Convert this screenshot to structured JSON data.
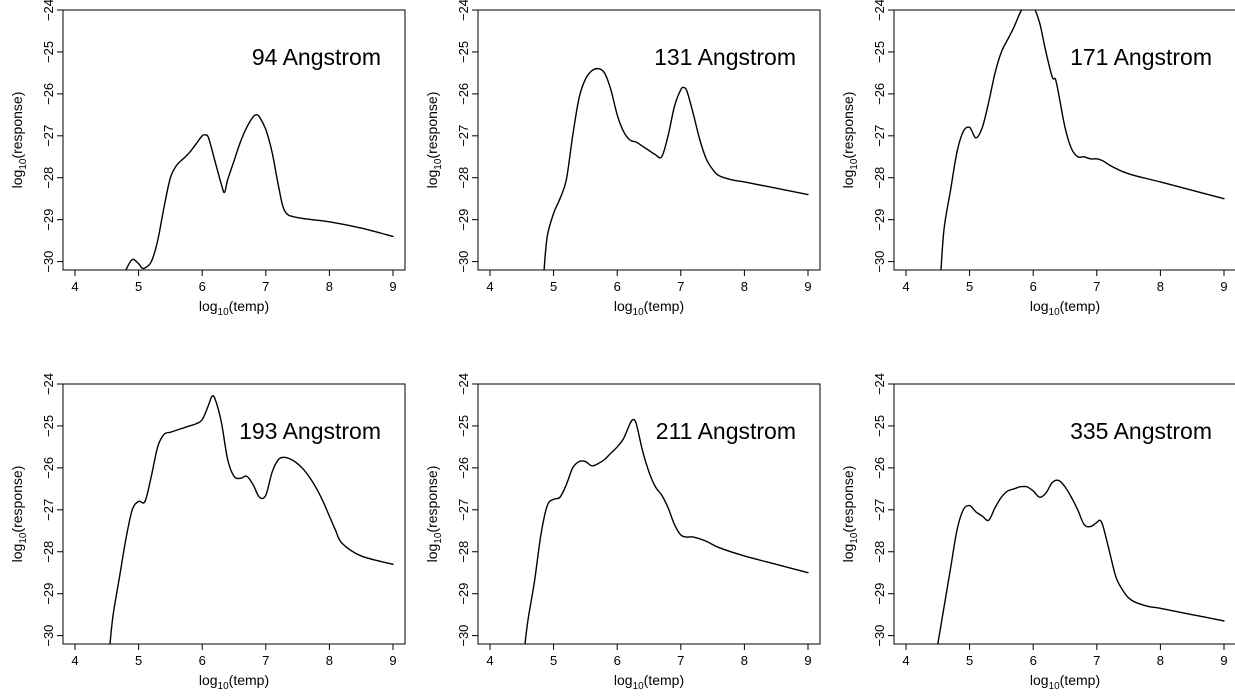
{
  "chart_data": [
    {
      "type": "line",
      "title": "94 Angstrom",
      "xlabel": {
        "base": "log",
        "sub": "10",
        "tail": "(temp)"
      },
      "ylabel": {
        "base": "log",
        "sub": "10",
        "tail": "(response)"
      },
      "xlim": [
        4,
        9
      ],
      "ylim": [
        -30.2,
        -24
      ],
      "xticks": [
        4,
        5,
        6,
        7,
        8,
        9
      ],
      "yticks": [
        -30,
        -29,
        -28,
        -27,
        -26,
        -25,
        -24
      ],
      "grid": false,
      "x": [
        4.8,
        4.9,
        5.0,
        5.05,
        5.1,
        5.2,
        5.3,
        5.4,
        5.5,
        5.6,
        5.7,
        5.8,
        5.9,
        6.0,
        6.05,
        6.1,
        6.2,
        6.3,
        6.35,
        6.4,
        6.5,
        6.6,
        6.7,
        6.8,
        6.85,
        6.9,
        7.0,
        7.1,
        7.2,
        7.3,
        7.5,
        8.0,
        8.5,
        9.0
      ],
      "y": [
        -30.2,
        -29.95,
        -30.05,
        -30.15,
        -30.15,
        -30.0,
        -29.5,
        -28.7,
        -28.0,
        -27.7,
        -27.55,
        -27.4,
        -27.2,
        -27.0,
        -26.98,
        -27.05,
        -27.6,
        -28.15,
        -28.35,
        -28.05,
        -27.6,
        -27.15,
        -26.8,
        -26.55,
        -26.5,
        -26.55,
        -26.85,
        -27.4,
        -28.2,
        -28.8,
        -28.95,
        -29.05,
        -29.2,
        -29.4
      ]
    },
    {
      "type": "line",
      "title": "131 Angstrom",
      "xlabel": {
        "base": "log",
        "sub": "10",
        "tail": "(temp)"
      },
      "ylabel": {
        "base": "log",
        "sub": "10",
        "tail": "(response)"
      },
      "xlim": [
        4,
        9
      ],
      "ylim": [
        -30.2,
        -24
      ],
      "xticks": [
        4,
        5,
        6,
        7,
        8,
        9
      ],
      "yticks": [
        -30,
        -29,
        -28,
        -27,
        -26,
        -25,
        -24
      ],
      "grid": false,
      "x": [
        4.85,
        4.9,
        5.0,
        5.1,
        5.2,
        5.3,
        5.4,
        5.5,
        5.6,
        5.7,
        5.8,
        5.9,
        6.0,
        6.1,
        6.2,
        6.3,
        6.4,
        6.5,
        6.6,
        6.7,
        6.8,
        6.9,
        7.0,
        7.05,
        7.1,
        7.2,
        7.3,
        7.4,
        7.5,
        7.6,
        7.8,
        8.0,
        8.5,
        9.0
      ],
      "y": [
        -30.2,
        -29.4,
        -28.85,
        -28.5,
        -28.05,
        -27.0,
        -26.1,
        -25.65,
        -25.45,
        -25.4,
        -25.5,
        -25.9,
        -26.5,
        -26.9,
        -27.1,
        -27.15,
        -27.25,
        -27.35,
        -27.45,
        -27.5,
        -27.0,
        -26.3,
        -25.9,
        -25.85,
        -25.95,
        -26.5,
        -27.1,
        -27.55,
        -27.8,
        -27.95,
        -28.05,
        -28.1,
        -28.25,
        -28.4
      ]
    },
    {
      "type": "line",
      "title": "171 Angstrom",
      "xlabel": {
        "base": "log",
        "sub": "10",
        "tail": "(temp)"
      },
      "ylabel": {
        "base": "log",
        "sub": "10",
        "tail": "(response)"
      },
      "xlim": [
        4,
        9
      ],
      "ylim": [
        -30.2,
        -24
      ],
      "xticks": [
        4,
        5,
        6,
        7,
        8,
        9
      ],
      "yticks": [
        -30,
        -29,
        -28,
        -27,
        -26,
        -25,
        -24
      ],
      "grid": false,
      "x": [
        4.55,
        4.6,
        4.7,
        4.8,
        4.9,
        5.0,
        5.1,
        5.2,
        5.3,
        5.4,
        5.5,
        5.6,
        5.7,
        5.8,
        5.9,
        5.95,
        6.0,
        6.1,
        6.2,
        6.3,
        6.35,
        6.4,
        6.5,
        6.6,
        6.7,
        6.8,
        6.9,
        7.0,
        7.1,
        7.2,
        7.4,
        7.6,
        8.0,
        8.5,
        9.0
      ],
      "y": [
        -30.2,
        -29.2,
        -28.3,
        -27.4,
        -26.9,
        -26.8,
        -27.05,
        -26.8,
        -26.2,
        -25.5,
        -25.0,
        -24.7,
        -24.4,
        -24.05,
        -23.85,
        -23.85,
        -23.9,
        -24.3,
        -25.0,
        -25.6,
        -25.65,
        -26.0,
        -26.8,
        -27.3,
        -27.5,
        -27.5,
        -27.55,
        -27.55,
        -27.6,
        -27.7,
        -27.85,
        -27.95,
        -28.1,
        -28.3,
        -28.5
      ]
    },
    {
      "type": "line",
      "title": "193 Angstrom",
      "xlabel": {
        "base": "log",
        "sub": "10",
        "tail": "(temp)"
      },
      "ylabel": {
        "base": "log",
        "sub": "10",
        "tail": "(response)"
      },
      "xlim": [
        4,
        9
      ],
      "ylim": [
        -30.2,
        -24
      ],
      "xticks": [
        4,
        5,
        6,
        7,
        8,
        9
      ],
      "yticks": [
        -30,
        -29,
        -28,
        -27,
        -26,
        -25,
        -24
      ],
      "grid": false,
      "x": [
        4.55,
        4.6,
        4.7,
        4.8,
        4.9,
        5.0,
        5.1,
        5.2,
        5.3,
        5.4,
        5.5,
        5.6,
        5.7,
        5.8,
        5.9,
        6.0,
        6.1,
        6.15,
        6.2,
        6.3,
        6.4,
        6.5,
        6.6,
        6.7,
        6.8,
        6.9,
        7.0,
        7.1,
        7.2,
        7.3,
        7.4,
        7.5,
        7.6,
        7.7,
        7.8,
        7.9,
        8.0,
        8.1,
        8.2,
        8.5,
        9.0
      ],
      "y": [
        -30.2,
        -29.5,
        -28.6,
        -27.7,
        -27.0,
        -26.8,
        -26.8,
        -26.2,
        -25.5,
        -25.2,
        -25.15,
        -25.1,
        -25.05,
        -25.0,
        -24.95,
        -24.85,
        -24.5,
        -24.3,
        -24.35,
        -24.9,
        -25.8,
        -26.2,
        -26.25,
        -26.2,
        -26.4,
        -26.7,
        -26.65,
        -26.1,
        -25.8,
        -25.75,
        -25.8,
        -25.9,
        -26.05,
        -26.25,
        -26.5,
        -26.8,
        -27.15,
        -27.5,
        -27.8,
        -28.1,
        -28.3
      ]
    },
    {
      "type": "line",
      "title": "211 Angstrom",
      "xlabel": {
        "base": "log",
        "sub": "10",
        "tail": "(temp)"
      },
      "ylabel": {
        "base": "log",
        "sub": "10",
        "tail": "(response)"
      },
      "xlim": [
        4,
        9
      ],
      "ylim": [
        -30.2,
        -24
      ],
      "xticks": [
        4,
        5,
        6,
        7,
        8,
        9
      ],
      "yticks": [
        -30,
        -29,
        -28,
        -27,
        -26,
        -25,
        -24
      ],
      "grid": false,
      "x": [
        4.55,
        4.6,
        4.7,
        4.8,
        4.9,
        5.0,
        5.1,
        5.2,
        5.3,
        5.4,
        5.5,
        5.6,
        5.7,
        5.8,
        5.9,
        6.0,
        6.1,
        6.2,
        6.25,
        6.3,
        6.4,
        6.5,
        6.6,
        6.7,
        6.8,
        6.9,
        7.0,
        7.1,
        7.2,
        7.4,
        7.6,
        8.0,
        8.5,
        9.0
      ],
      "y": [
        -30.2,
        -29.6,
        -28.7,
        -27.6,
        -26.9,
        -26.75,
        -26.7,
        -26.4,
        -26.0,
        -25.85,
        -25.85,
        -25.95,
        -25.9,
        -25.8,
        -25.65,
        -25.5,
        -25.3,
        -24.95,
        -24.85,
        -24.95,
        -25.6,
        -26.1,
        -26.45,
        -26.65,
        -26.95,
        -27.35,
        -27.6,
        -27.65,
        -27.65,
        -27.75,
        -27.9,
        -28.1,
        -28.3,
        -28.5
      ]
    },
    {
      "type": "line",
      "title": "335 Angstrom",
      "xlabel": {
        "base": "log",
        "sub": "10",
        "tail": "(temp)"
      },
      "ylabel": {
        "base": "log",
        "sub": "10",
        "tail": "(response)"
      },
      "xlim": [
        4,
        9
      ],
      "ylim": [
        -30.2,
        -24
      ],
      "xticks": [
        4,
        5,
        6,
        7,
        8,
        9
      ],
      "yticks": [
        -30,
        -29,
        -28,
        -27,
        -26,
        -25,
        -24
      ],
      "grid": false,
      "x": [
        4.5,
        4.6,
        4.7,
        4.8,
        4.9,
        5.0,
        5.1,
        5.2,
        5.3,
        5.4,
        5.5,
        5.6,
        5.7,
        5.8,
        5.9,
        6.0,
        6.1,
        6.2,
        6.3,
        6.4,
        6.5,
        6.6,
        6.7,
        6.8,
        6.9,
        7.0,
        7.05,
        7.1,
        7.2,
        7.3,
        7.4,
        7.5,
        7.6,
        7.8,
        8.0,
        8.5,
        9.0
      ],
      "y": [
        -30.2,
        -29.3,
        -28.4,
        -27.5,
        -27.0,
        -26.9,
        -27.05,
        -27.15,
        -27.25,
        -26.95,
        -26.7,
        -26.55,
        -26.5,
        -26.45,
        -26.45,
        -26.55,
        -26.7,
        -26.6,
        -26.35,
        -26.3,
        -26.45,
        -26.7,
        -27.0,
        -27.35,
        -27.4,
        -27.3,
        -27.25,
        -27.4,
        -28.0,
        -28.6,
        -28.9,
        -29.1,
        -29.2,
        -29.3,
        -29.35,
        -29.5,
        -29.65
      ]
    }
  ]
}
